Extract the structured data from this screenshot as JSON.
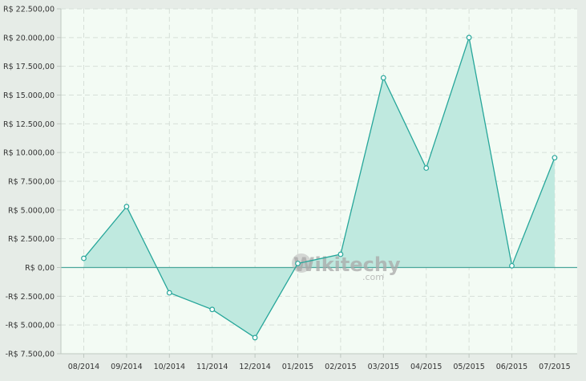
{
  "chart_data": {
    "type": "area",
    "categories": [
      "08/2014",
      "09/2014",
      "10/2014",
      "11/2014",
      "12/2014",
      "01/2015",
      "02/2015",
      "03/2015",
      "04/2015",
      "05/2015",
      "06/2015",
      "07/2015"
    ],
    "series": [
      {
        "values": [
          800,
          5300,
          -2200,
          -3650,
          -6100,
          350,
          1150,
          16500,
          8650,
          20000,
          150,
          9550
        ]
      }
    ],
    "ylim": [
      -7500,
      22500
    ],
    "yticks": [
      -7500,
      -5000,
      -2500,
      0,
      2500,
      5000,
      7500,
      10000,
      12500,
      15000,
      17500,
      20000,
      22500
    ],
    "ytick_labels": [
      "-R$ 7.500,00",
      "-R$ 5.000,00",
      "-R$ 2.500,00",
      "R$ 0,00",
      "R$ 2.500,00",
      "R$ 5.000,00",
      "R$ 7.500,00",
      "R$ 10.000,00",
      "R$ 12.500,00",
      "R$ 15.000,00",
      "R$ 17.500,00",
      "R$ 20.000,00",
      "R$ 22.500,00"
    ],
    "grid": true,
    "colors": {
      "line": "#26a69a",
      "fill": "#bfe9df",
      "plot_bg": "#f3fbf4",
      "page_bg": "#e6ece7"
    }
  },
  "watermark": {
    "main": "Wikitechy",
    "sub": ".com"
  }
}
